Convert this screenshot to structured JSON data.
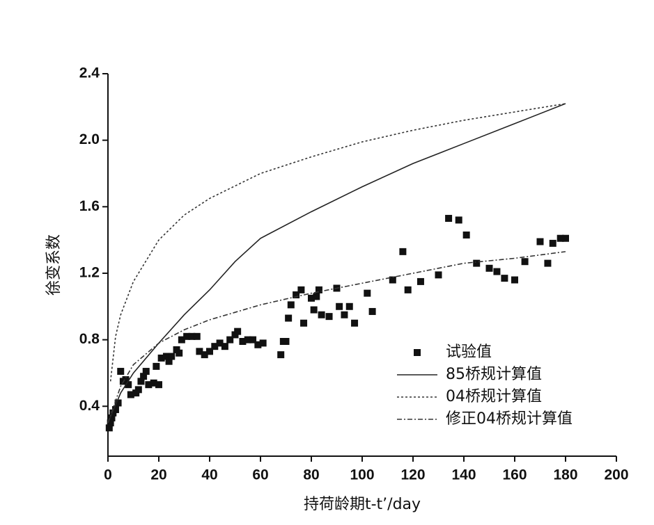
{
  "chart_data": {
    "type": "line",
    "xlabel": "持荷龄期t-t’/day",
    "ylabel": "徐变系数",
    "xlim": [
      0,
      200
    ],
    "ylim": [
      0.1,
      2.4
    ],
    "xticks": [
      0,
      20,
      40,
      60,
      80,
      100,
      120,
      140,
      160,
      180,
      200
    ],
    "yticks": [
      0.4,
      0.8,
      1.2,
      1.6,
      {
        "value": 2,
        "label": "2.0"
      },
      2.4
    ],
    "series": [
      {
        "name": "试验值",
        "mode": "marker",
        "color": "#111111",
        "x": [
          0.5,
          1,
          1.5,
          2,
          3,
          4,
          5,
          6,
          7,
          8,
          9,
          11,
          12,
          13,
          14,
          15,
          16,
          18,
          19,
          20,
          21,
          23,
          24,
          25,
          27,
          28,
          29,
          31,
          33,
          35,
          36,
          38,
          40,
          42,
          44,
          46,
          48,
          50,
          51,
          53,
          55,
          57,
          59,
          61,
          68,
          69,
          70,
          71,
          72,
          74,
          76,
          77,
          80,
          81,
          82,
          83,
          84,
          87,
          90,
          91,
          93,
          95,
          97,
          102,
          104,
          112,
          116,
          118,
          123,
          130,
          134,
          138,
          141,
          145,
          150,
          153,
          156,
          160,
          164,
          170,
          173,
          175,
          178,
          180
        ],
        "values": [
          0.27,
          0.3,
          0.33,
          0.36,
          0.38,
          0.42,
          0.61,
          0.55,
          0.56,
          0.53,
          0.47,
          0.48,
          0.5,
          0.55,
          0.58,
          0.61,
          0.53,
          0.54,
          0.64,
          0.53,
          0.69,
          0.7,
          0.67,
          0.7,
          0.74,
          0.72,
          0.8,
          0.82,
          0.82,
          0.82,
          0.73,
          0.71,
          0.73,
          0.76,
          0.78,
          0.76,
          0.8,
          0.83,
          0.85,
          0.79,
          0.8,
          0.8,
          0.77,
          0.78,
          0.71,
          0.79,
          0.79,
          0.93,
          1.01,
          1.07,
          1.1,
          0.9,
          1.05,
          0.98,
          1.06,
          1.1,
          0.95,
          0.94,
          1.11,
          1.0,
          0.95,
          1.0,
          0.9,
          1.08,
          0.97,
          1.16,
          1.33,
          1.1,
          1.15,
          1.19,
          1.53,
          1.52,
          1.43,
          1.26,
          1.23,
          1.21,
          1.17,
          1.16,
          1.27,
          1.39,
          1.26,
          1.38,
          1.41,
          1.41
        ]
      },
      {
        "name": "85桥规计算值",
        "mode": "solid",
        "color": "#222222",
        "x": [
          0,
          5,
          10,
          20,
          30,
          40,
          50,
          60,
          80,
          100,
          120,
          140,
          160,
          180
        ],
        "values": [
          0.3,
          0.48,
          0.6,
          0.78,
          0.95,
          1.1,
          1.27,
          1.41,
          1.57,
          1.72,
          1.86,
          1.98,
          2.1,
          2.22
        ]
      },
      {
        "name": "04桥规计算值",
        "mode": "dotted",
        "color": "#333333",
        "x": [
          1,
          3,
          5,
          10,
          20,
          30,
          40,
          60,
          80,
          100,
          120,
          140,
          160,
          180
        ],
        "values": [
          0.55,
          0.82,
          0.95,
          1.15,
          1.4,
          1.55,
          1.65,
          1.8,
          1.9,
          1.99,
          2.06,
          2.12,
          2.17,
          2.22
        ]
      },
      {
        "name": "修正04桥规计算值",
        "mode": "dashdot",
        "color": "#333333",
        "x": [
          0,
          5,
          10,
          20,
          30,
          40,
          60,
          80,
          100,
          120,
          140,
          160,
          180
        ],
        "values": [
          0.3,
          0.52,
          0.65,
          0.78,
          0.86,
          0.92,
          1.01,
          1.08,
          1.14,
          1.2,
          1.26,
          1.29,
          1.33
        ]
      }
    ]
  }
}
